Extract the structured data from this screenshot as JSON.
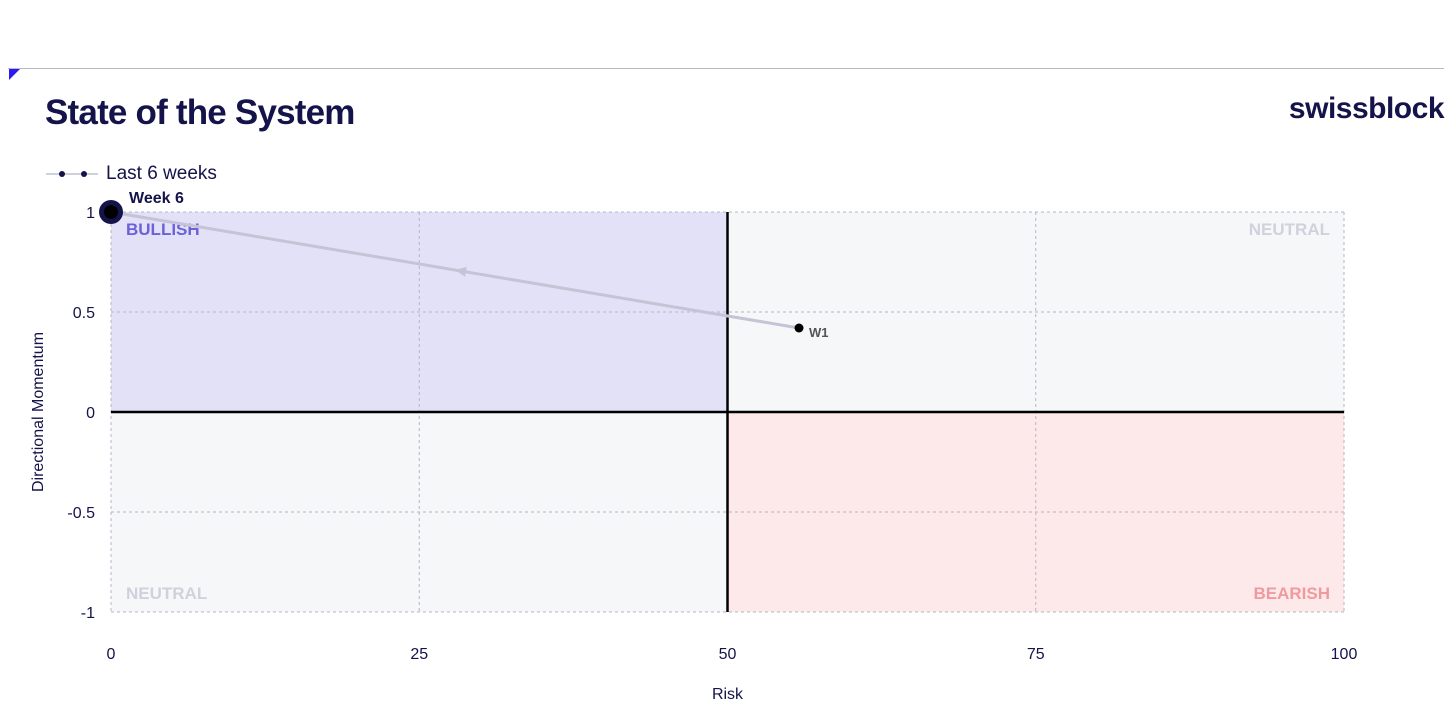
{
  "header": {
    "title": "State of the System",
    "brand": "swissblock"
  },
  "legend": {
    "label": "Last 6 weeks"
  },
  "colors": {
    "navy": "#14134a",
    "bullish_fill": "#e2e1f8",
    "bearish_fill": "#fde9ea",
    "neutral_fill": "#f6f7f9",
    "grid": "#b5b5c6",
    "path": "#c4c4d6",
    "bullish_text": "#6a62d6",
    "bearish_text": "#ef9a9f",
    "neutral_text": "#d0d1dd"
  },
  "chart_data": {
    "type": "scatter",
    "title": "State of the System",
    "xlabel": "Risk",
    "ylabel": "Directional Momentum",
    "xlim": [
      0,
      100
    ],
    "ylim": [
      -1,
      1
    ],
    "x_ticks": [
      0,
      25,
      50,
      75,
      100
    ],
    "y_ticks": [
      1,
      0.5,
      0,
      -0.5,
      -1
    ],
    "y_tick_labels": [
      "1",
      "0.5",
      "0",
      "-0.5",
      "-1"
    ],
    "grid": true,
    "quadrants": [
      {
        "label": "BULLISH",
        "position": "top-left"
      },
      {
        "label": "NEUTRAL",
        "position": "top-right"
      },
      {
        "label": "NEUTRAL",
        "position": "bottom-left"
      },
      {
        "label": "BEARISH",
        "position": "bottom-right"
      }
    ],
    "series": [
      {
        "name": "Last 6 weeks",
        "points": [
          {
            "label": "W1",
            "x": 55.8,
            "y": 0.42
          },
          {
            "label": "Week 6",
            "x": 0,
            "y": 1
          }
        ]
      }
    ]
  }
}
